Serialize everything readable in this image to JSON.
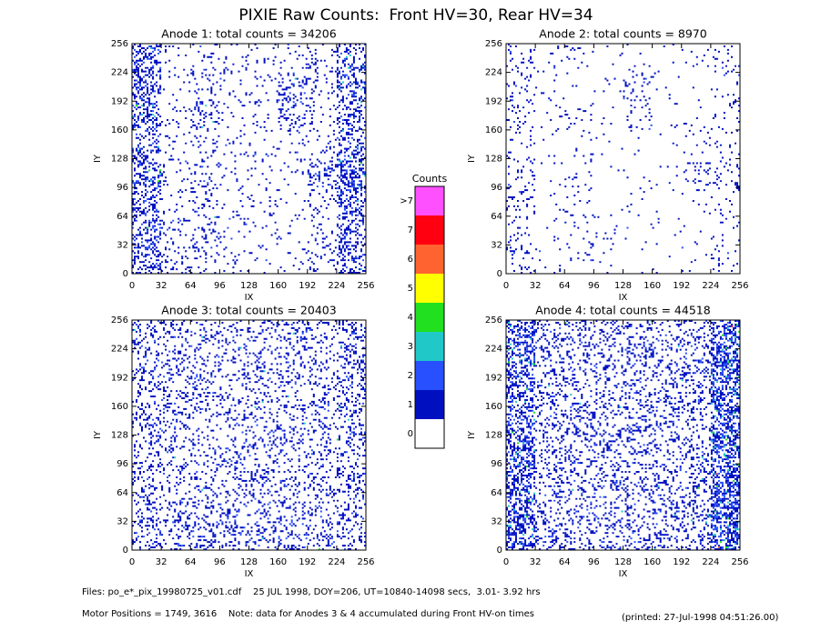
{
  "title": "PIXIE Raw Counts:  Front HV=30, Rear HV=34",
  "chart_data": [
    {
      "type": "heatmap",
      "title": "Anode 1: total counts = 34206",
      "xlabel": "IX",
      "ylabel": "IY",
      "xlim": [
        0,
        256
      ],
      "ylim": [
        0,
        256
      ],
      "xticks": [
        0,
        32,
        64,
        96,
        128,
        160,
        192,
        224,
        256
      ],
      "yticks": [
        0,
        32,
        64,
        96,
        128,
        160,
        192,
        224,
        256
      ],
      "values": [
        [
          0.45,
          0.08,
          0.12,
          0.06,
          0.05,
          0.06,
          0.1,
          0.35
        ],
        [
          0.45,
          0.07,
          0.1,
          0.06,
          0.08,
          0.25,
          0.08,
          0.35
        ],
        [
          0.5,
          0.08,
          0.22,
          0.05,
          0.06,
          0.2,
          0.08,
          0.35
        ],
        [
          0.5,
          0.06,
          0.1,
          0.05,
          0.05,
          0.06,
          0.1,
          0.4
        ],
        [
          0.5,
          0.07,
          0.15,
          0.05,
          0.06,
          0.08,
          0.3,
          0.5
        ],
        [
          0.45,
          0.08,
          0.1,
          0.05,
          0.05,
          0.05,
          0.12,
          0.4
        ],
        [
          0.45,
          0.12,
          0.15,
          0.06,
          0.05,
          0.05,
          0.1,
          0.35
        ],
        [
          0.45,
          0.12,
          0.12,
          0.06,
          0.05,
          0.05,
          0.1,
          0.35
        ]
      ]
    },
    {
      "type": "heatmap",
      "title": "Anode 2: total counts = 8970",
      "xlabel": "IX",
      "ylabel": "IY",
      "xlim": [
        0,
        256
      ],
      "ylim": [
        0,
        256
      ],
      "xticks": [
        0,
        32,
        64,
        96,
        128,
        160,
        192,
        224,
        256
      ],
      "yticks": [
        0,
        32,
        64,
        96,
        128,
        160,
        192,
        224,
        256
      ],
      "values": [
        [
          0.12,
          0.03,
          0.05,
          0.02,
          0.02,
          0.02,
          0.04,
          0.1
        ],
        [
          0.1,
          0.02,
          0.03,
          0.02,
          0.12,
          0.02,
          0.02,
          0.08
        ],
        [
          0.1,
          0.03,
          0.06,
          0.02,
          0.08,
          0.02,
          0.02,
          0.06
        ],
        [
          0.1,
          0.02,
          0.03,
          0.02,
          0.02,
          0.02,
          0.03,
          0.06
        ],
        [
          0.1,
          0.02,
          0.05,
          0.02,
          0.02,
          0.02,
          0.12,
          0.1
        ],
        [
          0.1,
          0.02,
          0.04,
          0.02,
          0.02,
          0.02,
          0.03,
          0.06
        ],
        [
          0.1,
          0.03,
          0.05,
          0.02,
          0.02,
          0.02,
          0.02,
          0.06
        ],
        [
          0.12,
          0.04,
          0.05,
          0.02,
          0.02,
          0.02,
          0.03,
          0.1
        ]
      ]
    },
    {
      "type": "heatmap",
      "title": "Anode 3: total counts = 20403",
      "xlabel": "IX",
      "ylabel": "IY",
      "xlim": [
        0,
        256
      ],
      "ylim": [
        0,
        256
      ],
      "xticks": [
        0,
        32,
        64,
        96,
        128,
        160,
        192,
        224,
        256
      ],
      "yticks": [
        0,
        32,
        64,
        96,
        128,
        160,
        192,
        224,
        256
      ],
      "values": [
        [
          0.25,
          0.18,
          0.18,
          0.18,
          0.18,
          0.18,
          0.18,
          0.25
        ],
        [
          0.25,
          0.18,
          0.18,
          0.18,
          0.18,
          0.18,
          0.18,
          0.25
        ],
        [
          0.25,
          0.18,
          0.18,
          0.18,
          0.18,
          0.18,
          0.18,
          0.25
        ],
        [
          0.25,
          0.18,
          0.18,
          0.18,
          0.18,
          0.18,
          0.18,
          0.25
        ],
        [
          0.25,
          0.18,
          0.18,
          0.18,
          0.18,
          0.18,
          0.18,
          0.25
        ],
        [
          0.25,
          0.18,
          0.18,
          0.18,
          0.18,
          0.18,
          0.18,
          0.25
        ],
        [
          0.25,
          0.2,
          0.2,
          0.2,
          0.2,
          0.2,
          0.2,
          0.25
        ],
        [
          0.25,
          0.25,
          0.25,
          0.25,
          0.25,
          0.25,
          0.25,
          0.25
        ]
      ]
    },
    {
      "type": "heatmap",
      "title": "Anode 4: total counts = 44518",
      "xlabel": "IX",
      "ylabel": "IY",
      "xlim": [
        0,
        256
      ],
      "ylim": [
        0,
        256
      ],
      "xticks": [
        0,
        32,
        64,
        96,
        128,
        160,
        192,
        224,
        256
      ],
      "yticks": [
        0,
        32,
        64,
        96,
        128,
        160,
        192,
        224,
        256
      ],
      "values": [
        [
          0.6,
          0.22,
          0.22,
          0.22,
          0.22,
          0.22,
          0.22,
          0.8
        ],
        [
          0.6,
          0.22,
          0.22,
          0.22,
          0.22,
          0.22,
          0.22,
          0.8
        ],
        [
          0.6,
          0.22,
          0.22,
          0.22,
          0.22,
          0.22,
          0.22,
          0.8
        ],
        [
          0.6,
          0.22,
          0.22,
          0.22,
          0.22,
          0.22,
          0.22,
          0.8
        ],
        [
          0.6,
          0.22,
          0.22,
          0.22,
          0.22,
          0.22,
          0.22,
          0.8
        ],
        [
          0.6,
          0.22,
          0.22,
          0.22,
          0.22,
          0.22,
          0.22,
          0.8
        ],
        [
          0.6,
          0.22,
          0.22,
          0.22,
          0.22,
          0.22,
          0.22,
          0.8
        ],
        [
          0.6,
          0.25,
          0.25,
          0.25,
          0.25,
          0.25,
          0.25,
          0.8
        ]
      ]
    }
  ],
  "colorbar": {
    "title": "Counts",
    "labels": [
      "0",
      "1",
      "2",
      "3",
      "4",
      "5",
      "6",
      "7",
      ">7"
    ],
    "colors": [
      "#ffffff",
      "#0010c0",
      "#2850ff",
      "#20c8c8",
      "#20e020",
      "#ffff00",
      "#ff6430",
      "#ff0010",
      "#ff50ff"
    ]
  },
  "footer": {
    "files": "Files: po_e*_pix_19980725_v01.cdf    25 JUL 1998, DOY=206, UT=10840-14098 secs,  3.01- 3.92 hrs",
    "motor": "Motor Positions = 1749, 3616    Note: data for Anodes 3 & 4 accumulated during Front HV-on times",
    "printed": "(printed: 27-Jul-1998 04:51:26.00)"
  }
}
